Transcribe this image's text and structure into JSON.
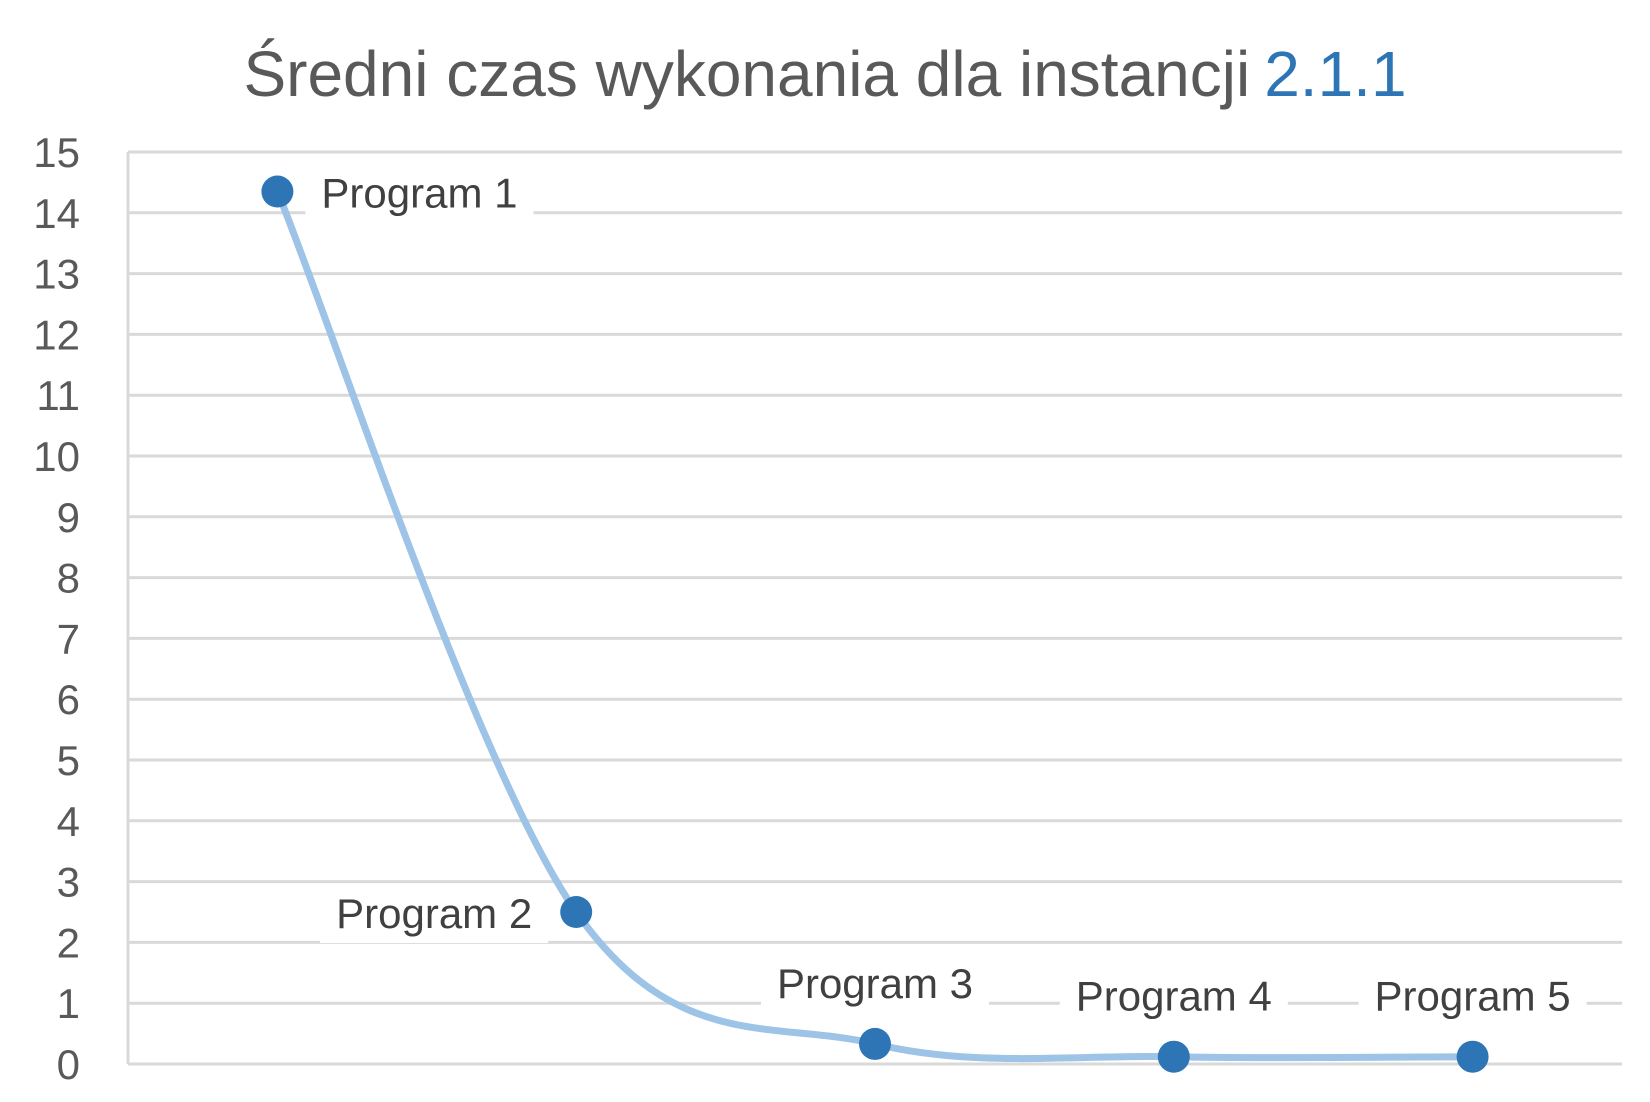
{
  "chart_data": {
    "type": "line",
    "title": "Średni czas wykonania dla instancji",
    "title_accent": "2.1.1",
    "xlabel": "",
    "ylabel": "",
    "ylim": [
      0,
      15
    ],
    "yticks": [
      0,
      1,
      2,
      3,
      4,
      5,
      6,
      7,
      8,
      9,
      10,
      11,
      12,
      13,
      14,
      15
    ],
    "grid": true,
    "smooth": true,
    "categories": [
      "Program 1",
      "Program 2",
      "Program 3",
      "Program 4",
      "Program 5"
    ],
    "series": [
      {
        "values": [
          14.35,
          2.5,
          0.33,
          0.12,
          0.12
        ],
        "line_color": "#9dc3e6",
        "marker_color": "#2e75b6"
      }
    ],
    "data_labels": [
      "Program 1",
      "Program 2",
      "Program 3",
      "Program 4",
      "Program 5"
    ]
  }
}
